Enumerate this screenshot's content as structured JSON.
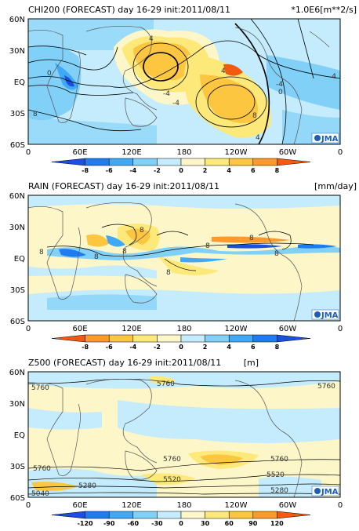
{
  "panels": [
    {
      "id": "chi200",
      "title": "CHI200 (FORECAST) day 16-29 init:2011/08/11",
      "unit": "*1.0E6[m**2/s]",
      "lat_labels": [
        "60N",
        "30N",
        "EQ",
        "30S",
        "60S"
      ],
      "lon_labels": [
        "0",
        "60E",
        "120E",
        "180",
        "120W",
        "60W",
        "0"
      ],
      "colorbar": {
        "labels": [
          "-8",
          "-6",
          "-4",
          "-2",
          "0",
          "2",
          "4",
          "6",
          "8"
        ],
        "colors": [
          "#1a4fe0",
          "#1e7cf0",
          "#40a8f5",
          "#80d0f8",
          "#c4ecfc",
          "#fdf6c8",
          "#fde97a",
          "#fcc640",
          "#fb9a2a",
          "#f25a10"
        ]
      },
      "contour_labels": [
        "0",
        "8",
        "4",
        "-4",
        "-4",
        "4",
        "8",
        "-4",
        "0",
        "-4",
        "4"
      ],
      "logo": "JMA"
    },
    {
      "id": "rain",
      "title": "RAIN (FORECAST) day 16-29 init:2011/08/11",
      "unit": "[mm/day]",
      "lat_labels": [
        "60N",
        "30N",
        "EQ",
        "30S",
        "60S"
      ],
      "lon_labels": [
        "0",
        "60E",
        "120E",
        "180",
        "120W",
        "60W",
        "0"
      ],
      "colorbar": {
        "labels": [
          "-8",
          "-6",
          "-4",
          "-2",
          "0",
          "2",
          "4",
          "6",
          "8"
        ],
        "colors": [
          "#f25a10",
          "#fb9a2a",
          "#fcc640",
          "#fde97a",
          "#fdf6c8",
          "#c4ecfc",
          "#80d0f8",
          "#40a8f5",
          "#1e7cf0",
          "#1a4fe0"
        ]
      },
      "contour_labels": [
        "8",
        "8",
        "8",
        "8",
        "8",
        "8",
        "8",
        "8"
      ],
      "logo": "JMA"
    },
    {
      "id": "z500",
      "title": "Z500 (FORECAST) day 16-29 init:2011/08/11",
      "unit": "[m]",
      "lat_labels": [
        "60N",
        "30N",
        "EQ",
        "30S",
        "60S"
      ],
      "lon_labels": [
        "0",
        "60E",
        "120E",
        "180",
        "120W",
        "60W",
        "0"
      ],
      "colorbar": {
        "labels": [
          "-120",
          "-90",
          "-60",
          "-30",
          "0",
          "30",
          "60",
          "90",
          "120"
        ],
        "colors": [
          "#1a4fe0",
          "#1e7cf0",
          "#40a8f5",
          "#80d0f8",
          "#c4ecfc",
          "#fdf6c8",
          "#fde97a",
          "#fcc640",
          "#fb9a2a",
          "#f25a10"
        ]
      },
      "contour_labels": [
        "5760",
        "5760",
        "5760",
        "5760",
        "5760",
        "5760",
        "5280",
        "5520",
        "5520",
        "5280",
        "5040",
        "5280"
      ],
      "logo": "JMA"
    }
  ]
}
